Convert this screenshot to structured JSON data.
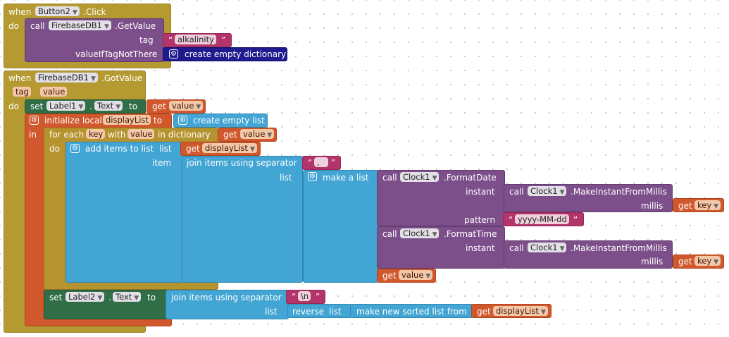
{
  "event1": {
    "when": "when",
    "component": "Button2",
    "event": ".Click",
    "do": "do",
    "call": {
      "call": "call",
      "component": "FirebaseDB1",
      "method": ".GetValue",
      "tag_label": "tag",
      "tag_value": "alkalinity",
      "default_label": "valueIfTagNotThere",
      "default_value": "create empty dictionary"
    }
  },
  "event2": {
    "when": "when",
    "component": "FirebaseDB1",
    "event": ".GotValue",
    "params": [
      "tag",
      "value"
    ],
    "do": "do",
    "set1": {
      "set": "set",
      "component": "Label1",
      "dot": ".",
      "property": "Text",
      "to": "to",
      "get": "get",
      "var": "value"
    },
    "init_local": {
      "label": "initialize local",
      "name": "displayList",
      "to": "to",
      "value": "create empty list",
      "in": "in"
    },
    "for_each": {
      "for_each": "for each",
      "key": "key",
      "with": "with",
      "value": "value",
      "in_dictionary": "in dictionary",
      "get": "get",
      "dict_var": "value",
      "do": "do"
    },
    "add_items": {
      "label": "add items to list",
      "list_label": "list",
      "get": "get",
      "list_var": "displayList",
      "item_label": "item"
    },
    "join": {
      "label": "join items using separator",
      "separator": ",",
      "list_label": "list"
    },
    "make_list": {
      "label": "make a list"
    },
    "format_date": {
      "call": "call",
      "component": "Clock1",
      "method": ".FormatDate",
      "instant_label": "instant",
      "pattern_label": "pattern",
      "pattern_value": "yyyy-MM-dd"
    },
    "make_instant_1": {
      "call": "call",
      "component": "Clock1",
      "method": ".MakeInstantFromMillis",
      "millis_label": "millis",
      "get": "get",
      "var": "key"
    },
    "format_time": {
      "call": "call",
      "component": "Clock1",
      "method": ".FormatTime",
      "instant_label": "instant"
    },
    "make_instant_2": {
      "call": "call",
      "component": "Clock1",
      "method": ".MakeInstantFromMillis",
      "millis_label": "millis",
      "get": "get",
      "var": "key"
    },
    "get_value": {
      "get": "get",
      "var": "value"
    },
    "set2": {
      "set": "set",
      "component": "Label2",
      "dot": ".",
      "property": "Text",
      "to": "to",
      "join_label": "join items using separator",
      "separator": "\\n",
      "list_label": "list",
      "reverse": "reverse",
      "reverse_list": "list",
      "sorted": "make new sorted list from",
      "get": "get",
      "var": "displayList"
    }
  },
  "colors": {
    "event": "#b59a32",
    "component_call": "#7c4f8a",
    "text": "#b2346a",
    "dictionary": "#1f1a8e",
    "setter": "#2f6e46",
    "variable": "#d0582c",
    "list": "#42a5d4",
    "control": "#b5932f"
  }
}
